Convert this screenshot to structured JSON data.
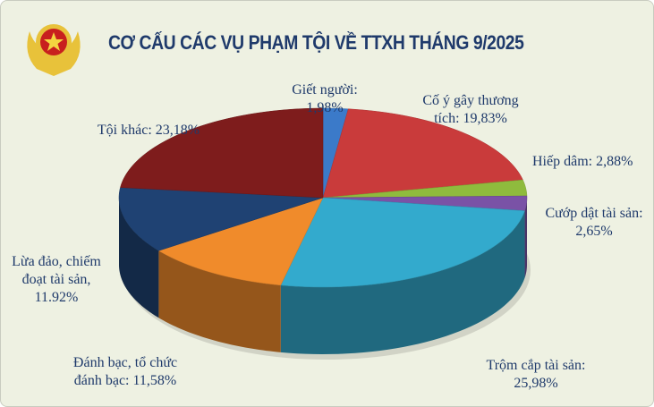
{
  "chart_data": {
    "type": "pie",
    "style": "3d",
    "title": "CƠ CẤU CÁC VỤ PHẠM TỘI VỀ TTXH THÁNG 9/2025",
    "slices": [
      {
        "label": "Giết người:",
        "value_label": "1,98%",
        "value": 1.98,
        "color": "#3b7ac9"
      },
      {
        "label": "Cố ý gây thương",
        "value_label": "tích: 19,83%",
        "value": 19.83,
        "color": "#c93b3b"
      },
      {
        "label": "Hiếp dâm: 2,88%",
        "value_label": "",
        "value": 2.88,
        "color": "#8fbb3d"
      },
      {
        "label": "Cướp dật tài sản:",
        "value_label": "2,65%",
        "value": 2.65,
        "color": "#7a52a6"
      },
      {
        "label": "Trộm cắp tài sản:",
        "value_label": "25,98%",
        "value": 25.98,
        "color": "#33aacd"
      },
      {
        "label": "Đánh bạc, tổ chức",
        "value_label": "đánh bạc: 11,58%",
        "value": 11.58,
        "color": "#f08b2b"
      },
      {
        "label": "Lừa đảo, chiếm",
        "value_label": "đoạt tài sản,",
        "value_extra": "11.92%",
        "value": 11.92,
        "color": "#1f4273"
      },
      {
        "label": "Tội khác: 23,18%",
        "value_label": "",
        "value": 23.18,
        "color": "#7e1c1c"
      }
    ]
  },
  "logo": {
    "icon": "police-emblem-icon"
  }
}
